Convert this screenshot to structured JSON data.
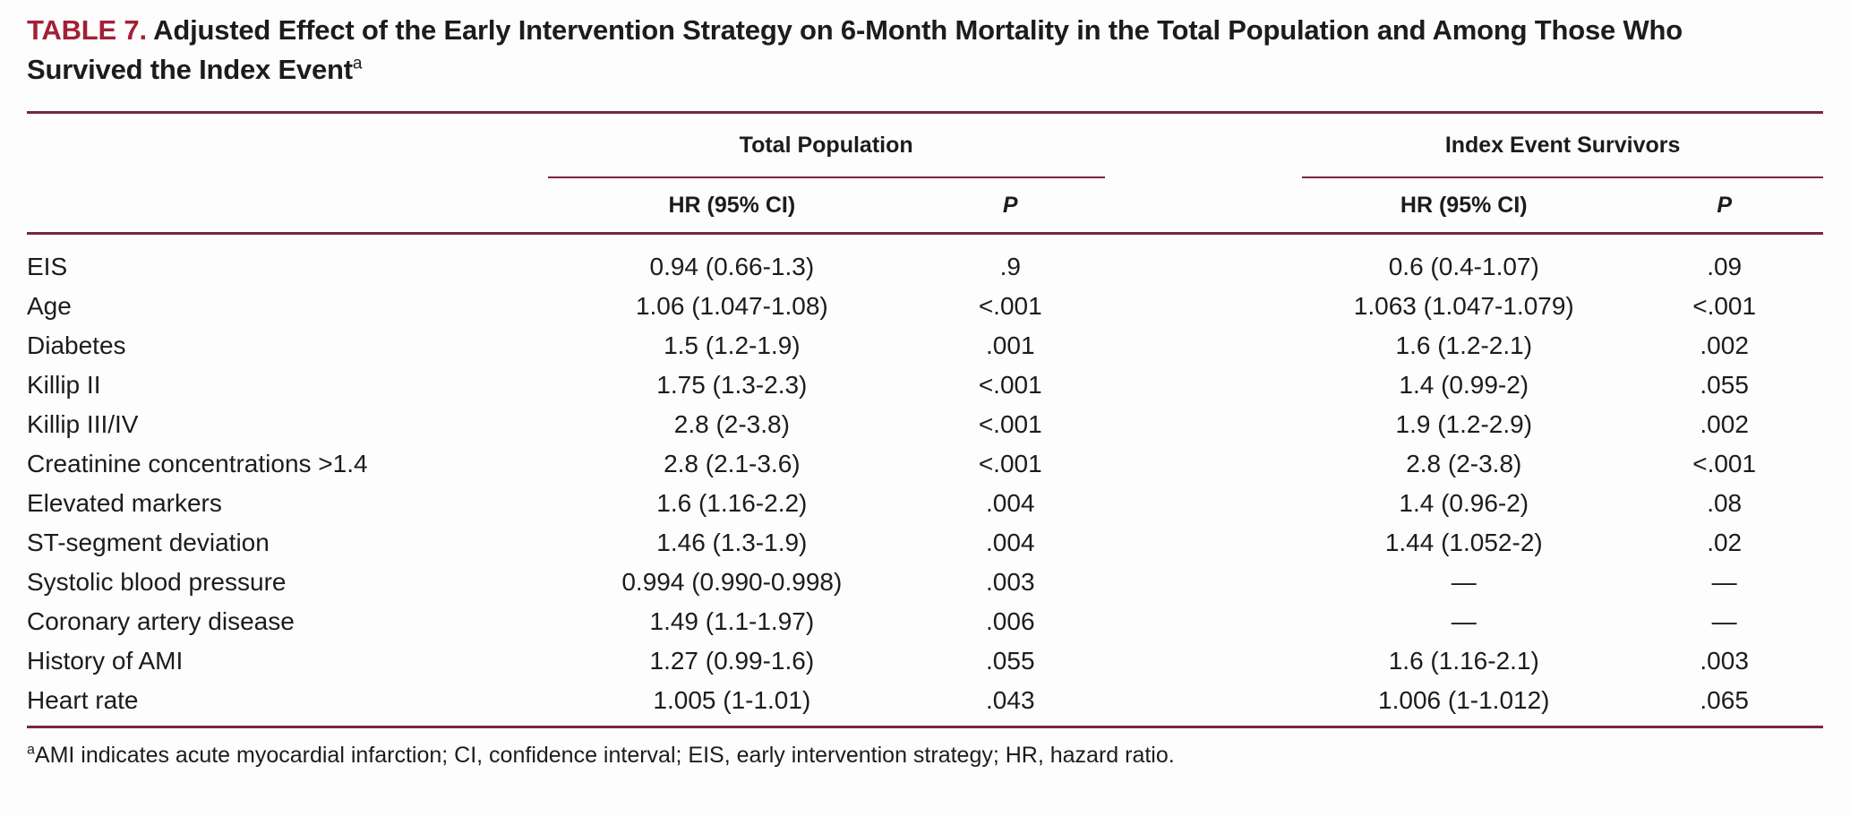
{
  "colors": {
    "title_accent": "#a32035",
    "rule": "#7b2442",
    "text": "#1c1c1c",
    "background": "#fdfdfd"
  },
  "title": {
    "label": "TABLE 7.",
    "text": " Adjusted Effect of the Early Intervention Strategy on 6-Month Mortality in the Total Population and Among Those Who Survived the Index Event",
    "superscript": "a"
  },
  "table": {
    "groups": {
      "total_population": "Total Population",
      "index_event_survivors": "Index Event Survivors"
    },
    "subheaders": {
      "hr": "HR (95% CI)",
      "p": "P"
    },
    "rows": [
      {
        "label": "EIS",
        "tp_hr": "0.94 (0.66-1.3)",
        "tp_p": ".9",
        "ies_hr": "0.6 (0.4-1.07)",
        "ies_p": ".09"
      },
      {
        "label": "Age",
        "tp_hr": "1.06 (1.047-1.08)",
        "tp_p": "<.001",
        "ies_hr": "1.063 (1.047-1.079)",
        "ies_p": "<.001"
      },
      {
        "label": "Diabetes",
        "tp_hr": "1.5 (1.2-1.9)",
        "tp_p": ".001",
        "ies_hr": "1.6 (1.2-2.1)",
        "ies_p": ".002"
      },
      {
        "label": "Killip II",
        "tp_hr": "1.75 (1.3-2.3)",
        "tp_p": "<.001",
        "ies_hr": "1.4 (0.99-2)",
        "ies_p": ".055"
      },
      {
        "label": "Killip III/IV",
        "tp_hr": "2.8 (2-3.8)",
        "tp_p": "<.001",
        "ies_hr": "1.9 (1.2-2.9)",
        "ies_p": ".002"
      },
      {
        "label": "Creatinine concentrations >1.4",
        "tp_hr": "2.8 (2.1-3.6)",
        "tp_p": "<.001",
        "ies_hr": "2.8 (2-3.8)",
        "ies_p": "<.001"
      },
      {
        "label": "Elevated markers",
        "tp_hr": "1.6 (1.16-2.2)",
        "tp_p": ".004",
        "ies_hr": "1.4 (0.96-2)",
        "ies_p": ".08"
      },
      {
        "label": "ST-segment deviation",
        "tp_hr": "1.46 (1.3-1.9)",
        "tp_p": ".004",
        "ies_hr": "1.44 (1.052-2)",
        "ies_p": ".02"
      },
      {
        "label": "Systolic blood pressure",
        "tp_hr": "0.994 (0.990-0.998)",
        "tp_p": ".003",
        "ies_hr": "—",
        "ies_p": "—"
      },
      {
        "label": "Coronary artery disease",
        "tp_hr": "1.49 (1.1-1.97)",
        "tp_p": ".006",
        "ies_hr": "—",
        "ies_p": "—"
      },
      {
        "label": "History of AMI",
        "tp_hr": "1.27 (0.99-1.6)",
        "tp_p": ".055",
        "ies_hr": "1.6 (1.16-2.1)",
        "ies_p": ".003"
      },
      {
        "label": "Heart rate",
        "tp_hr": "1.005 (1-1.01)",
        "tp_p": ".043",
        "ies_hr": "1.006 (1-1.012)",
        "ies_p": ".065"
      }
    ]
  },
  "footnote": {
    "superscript": "a",
    "text": "AMI indicates acute myocardial infarction; CI, confidence interval; EIS, early intervention strategy; HR, hazard ratio."
  }
}
